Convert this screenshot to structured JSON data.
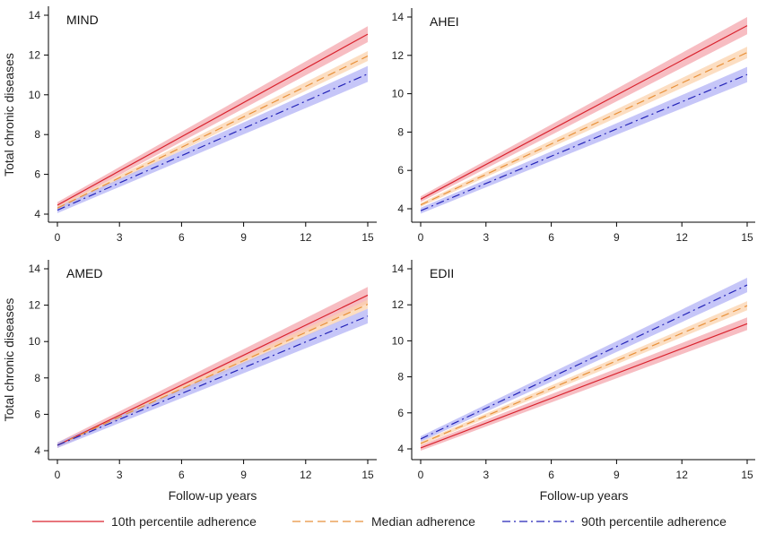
{
  "chart_data": {
    "type": "line",
    "title": "",
    "xlabel": "Follow-up years",
    "ylabel": "Total chronic diseases",
    "xlim": [
      0,
      15
    ],
    "ylim": [
      4,
      14
    ],
    "x_ticks": [
      0,
      3,
      6,
      9,
      12,
      15
    ],
    "y_ticks": [
      4,
      6,
      8,
      10,
      12,
      14
    ],
    "grid": false,
    "legend_position": "bottom",
    "legend": [
      {
        "key": "p10",
        "label": "10th percentile adherence",
        "color": "#d9232e",
        "dash": "solid"
      },
      {
        "key": "median",
        "label": "Median adherence",
        "color": "#e8913a",
        "dash": "dashed"
      },
      {
        "key": "p90",
        "label": "90th percentile adherence",
        "color": "#2424b8",
        "dash": "dash-dot"
      }
    ],
    "band_colors": {
      "p10": "#f4a7ae",
      "median": "#fbd3ad",
      "p90": "#b3b3f5"
    },
    "panels": [
      {
        "title": "MIND",
        "show_ylabel": true,
        "show_xlabel": false,
        "series": [
          {
            "key": "p10",
            "x": [
              0,
              15
            ],
            "y": [
              4.45,
              13.05
            ],
            "ci_lower": [
              4.3,
              12.65
            ],
            "ci_upper": [
              4.6,
              13.45
            ]
          },
          {
            "key": "median",
            "x": [
              0,
              15
            ],
            "y": [
              4.3,
              11.95
            ],
            "ci_lower": [
              4.2,
              11.7
            ],
            "ci_upper": [
              4.4,
              12.2
            ]
          },
          {
            "key": "p90",
            "x": [
              0,
              15
            ],
            "y": [
              4.2,
              11.05
            ],
            "ci_lower": [
              4.05,
              10.65
            ],
            "ci_upper": [
              4.35,
              11.45
            ]
          }
        ]
      },
      {
        "title": "AHEI",
        "show_ylabel": false,
        "show_xlabel": false,
        "series": [
          {
            "key": "p10",
            "x": [
              0,
              15
            ],
            "y": [
              4.5,
              13.55
            ],
            "ci_lower": [
              4.35,
              13.1
            ],
            "ci_upper": [
              4.65,
              14.0
            ]
          },
          {
            "key": "median",
            "x": [
              0,
              15
            ],
            "y": [
              4.2,
              12.15
            ],
            "ci_lower": [
              4.1,
              11.85
            ],
            "ci_upper": [
              4.3,
              12.45
            ]
          },
          {
            "key": "p90",
            "x": [
              0,
              15
            ],
            "y": [
              3.9,
              11.0
            ],
            "ci_lower": [
              3.75,
              10.6
            ],
            "ci_upper": [
              4.05,
              11.4
            ]
          }
        ]
      },
      {
        "title": "AMED",
        "show_ylabel": true,
        "show_xlabel": true,
        "series": [
          {
            "key": "p10",
            "x": [
              0,
              15
            ],
            "y": [
              4.3,
              12.55
            ],
            "ci_lower": [
              4.15,
              12.1
            ],
            "ci_upper": [
              4.45,
              13.0
            ]
          },
          {
            "key": "median",
            "x": [
              0,
              15
            ],
            "y": [
              4.3,
              12.05
            ],
            "ci_lower": [
              4.2,
              11.8
            ],
            "ci_upper": [
              4.4,
              12.3
            ]
          },
          {
            "key": "p90",
            "x": [
              0,
              15
            ],
            "y": [
              4.3,
              11.4
            ],
            "ci_lower": [
              4.15,
              11.0
            ],
            "ci_upper": [
              4.45,
              11.8
            ]
          }
        ]
      },
      {
        "title": "EDII",
        "show_ylabel": false,
        "show_xlabel": true,
        "series": [
          {
            "key": "p10",
            "x": [
              0,
              15
            ],
            "y": [
              4.05,
              10.95
            ],
            "ci_lower": [
              3.9,
              10.6
            ],
            "ci_upper": [
              4.2,
              11.3
            ]
          },
          {
            "key": "median",
            "x": [
              0,
              15
            ],
            "y": [
              4.3,
              11.95
            ],
            "ci_lower": [
              4.2,
              11.7
            ],
            "ci_upper": [
              4.4,
              12.2
            ]
          },
          {
            "key": "p90",
            "x": [
              0,
              15
            ],
            "y": [
              4.55,
              13.1
            ],
            "ci_lower": [
              4.4,
              12.7
            ],
            "ci_upper": [
              4.7,
              13.5
            ]
          }
        ]
      }
    ]
  }
}
